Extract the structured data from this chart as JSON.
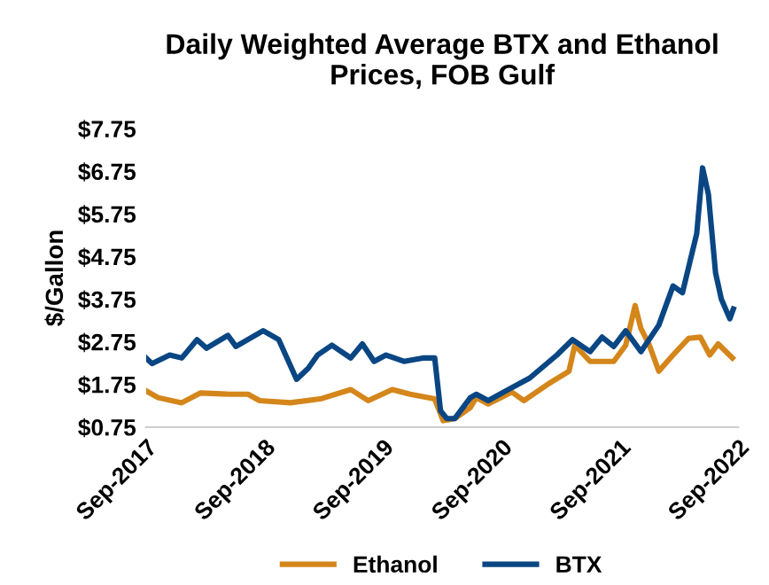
{
  "chart_data": {
    "type": "line",
    "title": "Daily Weighted Average BTX and Ethanol\nPrices, FOB Gulf",
    "ylabel": "$/Gallon",
    "series": [
      {
        "name": "Ethanol",
        "color": "#d4861b",
        "x": [
          "2017-09-01",
          "2017-10-08",
          "2017-12-20",
          "2018-02-16",
          "2018-05-18",
          "2018-07-12",
          "2018-08-17",
          "2018-11-20",
          "2019-02-20",
          "2019-05-25",
          "2019-07-18",
          "2019-09-30",
          "2019-11-24",
          "2020-02-08",
          "2020-03-05",
          "2020-04-10",
          "2020-05-28",
          "2020-06-15",
          "2020-07-22",
          "2020-10-03",
          "2020-11-09",
          "2021-01-21",
          "2021-03-28",
          "2021-04-15",
          "2021-06-01",
          "2021-08-13",
          "2021-09-19",
          "2021-10-18",
          "2021-11-05",
          "2021-12-01",
          "2021-12-30",
          "2022-02-12",
          "2022-04-01",
          "2022-05-07",
          "2022-06-05",
          "2022-07-01",
          "2022-08-14"
        ],
        "values": [
          1.6,
          1.44,
          1.32,
          1.55,
          1.52,
          1.52,
          1.37,
          1.32,
          1.41,
          1.63,
          1.37,
          1.63,
          1.52,
          1.41,
          0.9,
          0.95,
          1.21,
          1.44,
          1.29,
          1.57,
          1.37,
          1.75,
          2.06,
          2.67,
          2.29,
          2.29,
          2.67,
          3.6,
          3.06,
          2.67,
          2.06,
          2.44,
          2.83,
          2.86,
          2.44,
          2.7,
          2.37
        ]
      },
      {
        "name": "BTX",
        "color": "#0a4683",
        "x": [
          "2017-09-01",
          "2017-09-19",
          "2017-11-13",
          "2017-12-20",
          "2018-02-05",
          "2018-03-06",
          "2018-05-11",
          "2018-06-05",
          "2018-08-28",
          "2018-10-15",
          "2018-12-09",
          "2019-01-14",
          "2019-02-12",
          "2019-03-28",
          "2019-05-25",
          "2019-06-30",
          "2019-08-05",
          "2019-09-11",
          "2019-11-05",
          "2020-01-02",
          "2020-02-08",
          "2020-02-26",
          "2020-03-16",
          "2020-04-10",
          "2020-05-28",
          "2020-06-15",
          "2020-07-22",
          "2020-09-15",
          "2020-11-27",
          "2021-02-19",
          "2021-04-08",
          "2021-06-01",
          "2021-07-08",
          "2021-08-13",
          "2021-09-19",
          "2021-11-05",
          "2021-12-30",
          "2022-02-12",
          "2022-03-13",
          "2022-04-26",
          "2022-05-14",
          "2022-06-01",
          "2022-06-23",
          "2022-07-11",
          "2022-08-06",
          "2022-08-17"
        ],
        "values": [
          2.37,
          2.24,
          2.44,
          2.37,
          2.8,
          2.6,
          2.9,
          2.64,
          3.01,
          2.8,
          1.87,
          2.13,
          2.44,
          2.67,
          2.37,
          2.7,
          2.29,
          2.44,
          2.29,
          2.37,
          2.37,
          1.13,
          0.95,
          0.95,
          1.44,
          1.52,
          1.37,
          1.6,
          1.9,
          2.44,
          2.8,
          2.52,
          2.86,
          2.64,
          3.01,
          2.52,
          3.14,
          4.06,
          3.9,
          5.29,
          6.83,
          6.21,
          4.37,
          3.75,
          3.29,
          3.52
        ]
      }
    ],
    "xlim": [
      "2017-09-01",
      "2022-09-01"
    ],
    "xticks": [
      {
        "value": "2017-09-01",
        "label": "Sep-2017"
      },
      {
        "value": "2018-09-01",
        "label": "Sep-2018"
      },
      {
        "value": "2019-09-01",
        "label": "Sep-2019"
      },
      {
        "value": "2020-09-01",
        "label": "Sep-2020"
      },
      {
        "value": "2021-09-01",
        "label": "Sep-2021"
      },
      {
        "value": "2022-09-01",
        "label": "Sep-2022"
      }
    ],
    "ylim": [
      0.75,
      7.75
    ],
    "yticks": [
      {
        "value": 0.75,
        "label": "$0.75"
      },
      {
        "value": 1.75,
        "label": "$1.75"
      },
      {
        "value": 2.75,
        "label": "$2.75"
      },
      {
        "value": 3.75,
        "label": "$3.75"
      },
      {
        "value": 4.75,
        "label": "$4.75"
      },
      {
        "value": 5.75,
        "label": "$5.75"
      },
      {
        "value": 6.75,
        "label": "$6.75"
      },
      {
        "value": 7.75,
        "label": "$7.75"
      }
    ],
    "grid": false,
    "legend": "bottom",
    "marker": "none",
    "line_style": "solid"
  }
}
